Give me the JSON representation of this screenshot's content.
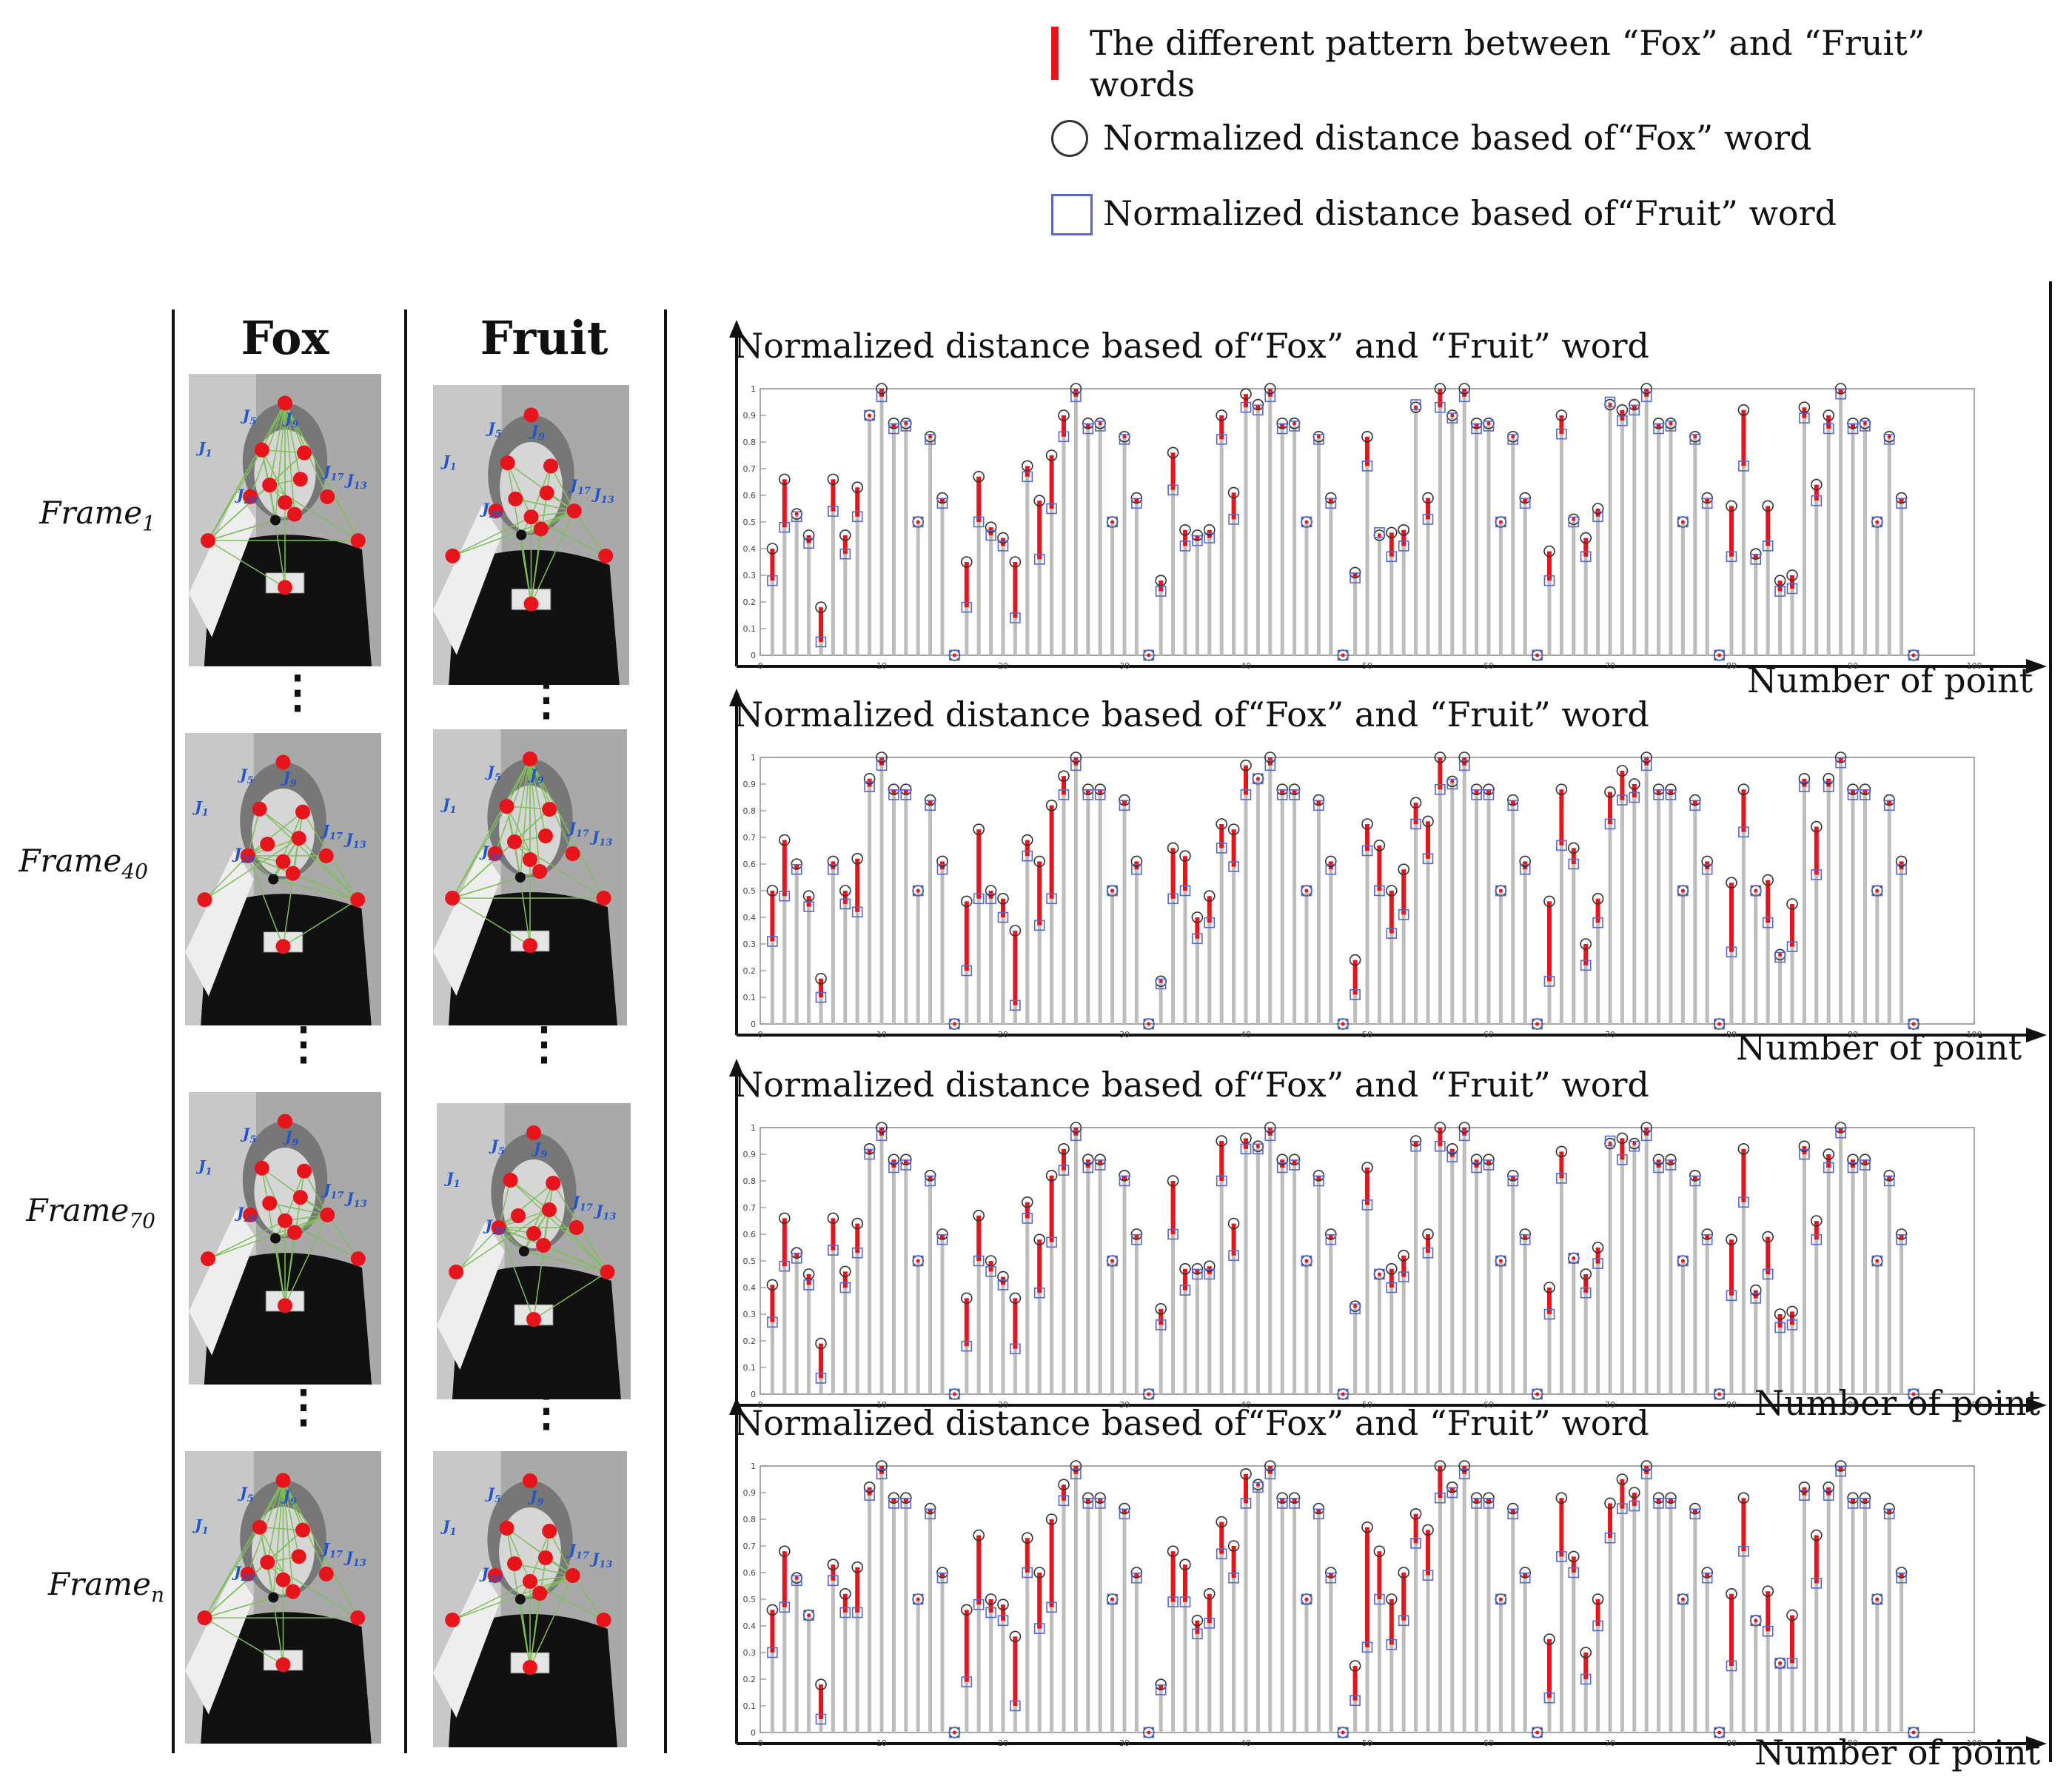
{
  "legend": {
    "diff_text": "The different pattern between “Fox” and “Fruit” words",
    "fox_text": "Normalized distance based of“Fox” word",
    "fruit_text": "Normalized distance based of“Fruit” word"
  },
  "columns": {
    "fox": "Fox",
    "fruit": "Fruit"
  },
  "frames": [
    {
      "base": "Frame",
      "sub": "1"
    },
    {
      "base": "Frame",
      "sub": "40"
    },
    {
      "base": "Frame",
      "sub": "70"
    },
    {
      "base": "Frame",
      "sub": "n"
    }
  ],
  "joint_labels": {
    "j1": "J",
    "s1": "1",
    "s5": "5",
    "s9": "9",
    "s13": "13",
    "s17": "17",
    "s20": "20"
  },
  "colors": {
    "diff": "#e8141b",
    "stem": "#bdbdbd",
    "fox_marker": "#333333",
    "fruit_marker": "#5566cc",
    "skeleton": "#7fbf5a",
    "joint": "#e8141b"
  },
  "chart_data": [
    {
      "type": "stem",
      "title": "Normalized distance based of“Fox” and “Fruit” word",
      "xlabel": "Number of point",
      "xlim": [
        0,
        100
      ],
      "ylim": [
        0,
        1
      ],
      "xticks": [
        0,
        10,
        20,
        30,
        40,
        50,
        60,
        70,
        80,
        90,
        100
      ],
      "yticks": [
        0,
        0.1,
        0.2,
        0.3,
        0.4,
        0.5,
        0.6,
        0.7,
        0.8,
        0.9,
        1
      ],
      "series": [
        {
          "name": "Fox",
          "values": [
            0.4,
            0.66,
            0.53,
            0.45,
            0.18,
            0.66,
            0.45,
            0.63,
            0.9,
            1,
            0.87,
            0.87,
            0.5,
            0.82,
            0.59,
            0,
            0.35,
            0.67,
            0.48,
            0.44,
            0.35,
            0.71,
            0.58,
            0.75,
            0.9,
            1,
            0.87,
            0.87,
            0.5,
            0.82,
            0.59,
            0,
            0.28,
            0.76,
            0.47,
            0.45,
            0.47,
            0.9,
            0.61,
            0.98,
            0.94,
            1,
            0.87,
            0.87,
            0.5,
            0.82,
            0.59,
            0,
            0.31,
            0.82,
            0.45,
            0.46,
            0.47,
            0.93,
            0.59,
            1,
            0.9,
            1,
            0.87,
            0.87,
            0.5,
            0.82,
            0.59,
            0,
            0.39,
            0.9,
            0.51,
            0.44,
            0.55,
            0.94,
            0.92,
            0.94,
            1,
            0.87,
            0.87,
            0.5,
            0.82,
            0.59,
            0,
            0.56,
            0.92,
            0.38,
            0.56,
            0.28,
            0.3,
            0.93,
            0.64,
            0.9,
            1,
            0.87,
            0.87,
            0.5,
            0.82,
            0.59,
            0
          ]
        },
        {
          "name": "Fruit",
          "values": [
            0.28,
            0.48,
            0.52,
            0.42,
            0.05,
            0.54,
            0.38,
            0.52,
            0.9,
            0.97,
            0.85,
            0.86,
            0.5,
            0.81,
            0.57,
            0,
            0.18,
            0.5,
            0.45,
            0.41,
            0.14,
            0.67,
            0.36,
            0.55,
            0.82,
            0.97,
            0.85,
            0.86,
            0.5,
            0.81,
            0.57,
            0,
            0.24,
            0.62,
            0.41,
            0.43,
            0.44,
            0.81,
            0.51,
            0.93,
            0.92,
            0.97,
            0.85,
            0.86,
            0.5,
            0.81,
            0.57,
            0,
            0.29,
            0.71,
            0.46,
            0.37,
            0.41,
            0.94,
            0.51,
            0.93,
            0.89,
            0.97,
            0.85,
            0.86,
            0.5,
            0.81,
            0.57,
            0,
            0.28,
            0.83,
            0.5,
            0.37,
            0.52,
            0.95,
            0.88,
            0.92,
            0.97,
            0.85,
            0.86,
            0.5,
            0.81,
            0.57,
            0,
            0.37,
            0.71,
            0.36,
            0.41,
            0.24,
            0.25,
            0.89,
            0.58,
            0.85,
            0.98,
            0.85,
            0.86,
            0.5,
            0.81,
            0.57,
            0
          ]
        }
      ]
    },
    {
      "type": "stem",
      "title": "Normalized distance based of“Fox” and “Fruit” word",
      "xlabel": "Number of point",
      "xlim": [
        0,
        100
      ],
      "ylim": [
        0,
        1
      ],
      "xticks": [
        0,
        10,
        20,
        30,
        40,
        50,
        60,
        70,
        80,
        90,
        100
      ],
      "yticks": [
        0,
        0.1,
        0.2,
        0.3,
        0.4,
        0.5,
        0.6,
        0.7,
        0.8,
        0.9,
        1
      ],
      "series": [
        {
          "name": "Fox",
          "values": [
            0.5,
            0.69,
            0.6,
            0.48,
            0.17,
            0.61,
            0.5,
            0.62,
            0.92,
            1,
            0.88,
            0.88,
            0.5,
            0.84,
            0.61,
            0,
            0.46,
            0.73,
            0.5,
            0.47,
            0.35,
            0.69,
            0.61,
            0.82,
            0.93,
            1,
            0.88,
            0.88,
            0.5,
            0.84,
            0.61,
            0,
            0.16,
            0.66,
            0.63,
            0.4,
            0.48,
            0.75,
            0.73,
            0.97,
            0.92,
            1,
            0.88,
            0.88,
            0.5,
            0.84,
            0.61,
            0,
            0.24,
            0.75,
            0.67,
            0.5,
            0.58,
            0.83,
            0.76,
            1,
            0.91,
            1,
            0.88,
            0.88,
            0.5,
            0.84,
            0.61,
            0,
            0.46,
            0.88,
            0.66,
            0.3,
            0.47,
            0.87,
            0.95,
            0.9,
            1,
            0.88,
            0.88,
            0.5,
            0.84,
            0.61,
            0,
            0.53,
            0.88,
            0.5,
            0.54,
            0.26,
            0.45,
            0.92,
            0.74,
            0.92,
            1,
            0.88,
            0.88,
            0.5,
            0.84,
            0.61,
            0
          ]
        },
        {
          "name": "Fruit",
          "values": [
            0.31,
            0.48,
            0.58,
            0.44,
            0.1,
            0.58,
            0.45,
            0.42,
            0.89,
            0.97,
            0.86,
            0.86,
            0.5,
            0.82,
            0.58,
            0,
            0.2,
            0.47,
            0.47,
            0.4,
            0.07,
            0.63,
            0.37,
            0.47,
            0.86,
            0.97,
            0.86,
            0.86,
            0.5,
            0.82,
            0.58,
            0,
            0.15,
            0.47,
            0.5,
            0.32,
            0.38,
            0.66,
            0.59,
            0.86,
            0.92,
            0.97,
            0.86,
            0.86,
            0.5,
            0.82,
            0.58,
            0,
            0.11,
            0.65,
            0.5,
            0.34,
            0.41,
            0.75,
            0.62,
            0.88,
            0.9,
            0.97,
            0.86,
            0.86,
            0.5,
            0.82,
            0.58,
            0,
            0.16,
            0.67,
            0.6,
            0.22,
            0.38,
            0.75,
            0.84,
            0.85,
            0.97,
            0.86,
            0.86,
            0.5,
            0.82,
            0.58,
            0,
            0.27,
            0.72,
            0.5,
            0.38,
            0.25,
            0.29,
            0.89,
            0.56,
            0.89,
            0.98,
            0.86,
            0.86,
            0.5,
            0.82,
            0.58,
            0
          ]
        }
      ]
    },
    {
      "type": "stem",
      "title": "Normalized distance based of“Fox” and “Fruit” word",
      "xlabel": "Number of point",
      "xlim": [
        0,
        100
      ],
      "ylim": [
        0,
        1
      ],
      "xticks": [
        0,
        10,
        20,
        30,
        40,
        50,
        60,
        70,
        80,
        90,
        100
      ],
      "yticks": [
        0,
        0.1,
        0.2,
        0.3,
        0.4,
        0.5,
        0.6,
        0.7,
        0.8,
        0.9,
        1
      ],
      "series": [
        {
          "name": "Fox",
          "values": [
            0.41,
            0.66,
            0.53,
            0.45,
            0.19,
            0.66,
            0.46,
            0.64,
            0.92,
            1,
            0.88,
            0.88,
            0.5,
            0.82,
            0.6,
            0,
            0.36,
            0.67,
            0.5,
            0.44,
            0.36,
            0.72,
            0.58,
            0.82,
            0.92,
            1,
            0.88,
            0.88,
            0.5,
            0.82,
            0.6,
            0,
            0.32,
            0.8,
            0.47,
            0.47,
            0.48,
            0.95,
            0.64,
            0.96,
            0.93,
            1,
            0.88,
            0.88,
            0.5,
            0.82,
            0.6,
            0,
            0.33,
            0.85,
            0.45,
            0.47,
            0.52,
            0.95,
            0.6,
            1,
            0.92,
            1,
            0.88,
            0.88,
            0.5,
            0.82,
            0.6,
            0,
            0.4,
            0.91,
            0.51,
            0.45,
            0.55,
            0.94,
            0.96,
            0.94,
            1,
            0.88,
            0.88,
            0.5,
            0.82,
            0.6,
            0,
            0.58,
            0.92,
            0.39,
            0.59,
            0.3,
            0.31,
            0.93,
            0.65,
            0.9,
            1,
            0.88,
            0.88,
            0.5,
            0.82,
            0.6,
            0
          ]
        },
        {
          "name": "Fruit",
          "values": [
            0.27,
            0.48,
            0.51,
            0.41,
            0.06,
            0.54,
            0.4,
            0.53,
            0.9,
            0.97,
            0.85,
            0.86,
            0.5,
            0.8,
            0.58,
            0,
            0.18,
            0.5,
            0.46,
            0.41,
            0.17,
            0.66,
            0.38,
            0.57,
            0.84,
            0.97,
            0.85,
            0.86,
            0.5,
            0.8,
            0.58,
            0,
            0.26,
            0.6,
            0.39,
            0.45,
            0.45,
            0.8,
            0.52,
            0.92,
            0.92,
            0.97,
            0.85,
            0.86,
            0.5,
            0.8,
            0.58,
            0,
            0.32,
            0.71,
            0.45,
            0.4,
            0.44,
            0.93,
            0.53,
            0.93,
            0.89,
            0.97,
            0.85,
            0.86,
            0.5,
            0.8,
            0.58,
            0,
            0.3,
            0.81,
            0.51,
            0.38,
            0.49,
            0.95,
            0.88,
            0.93,
            0.97,
            0.85,
            0.86,
            0.5,
            0.8,
            0.58,
            0,
            0.37,
            0.72,
            0.36,
            0.45,
            0.25,
            0.26,
            0.9,
            0.58,
            0.85,
            0.98,
            0.85,
            0.86,
            0.5,
            0.8,
            0.58,
            0
          ]
        }
      ]
    },
    {
      "type": "stem",
      "title": "Normalized distance based of“Fox” and “Fruit” word",
      "xlabel": "Number of point",
      "xlim": [
        0,
        100
      ],
      "ylim": [
        0,
        1
      ],
      "xticks": [
        0,
        10,
        20,
        30,
        40,
        50,
        60,
        70,
        80,
        90,
        100
      ],
      "yticks": [
        0,
        0.1,
        0.2,
        0.3,
        0.4,
        0.5,
        0.6,
        0.7,
        0.8,
        0.9,
        1
      ],
      "series": [
        {
          "name": "Fox",
          "values": [
            0.46,
            0.68,
            0.58,
            0.44,
            0.18,
            0.63,
            0.52,
            0.62,
            0.92,
            1,
            0.88,
            0.88,
            0.5,
            0.84,
            0.6,
            0,
            0.46,
            0.74,
            0.5,
            0.48,
            0.36,
            0.73,
            0.6,
            0.8,
            0.93,
            1,
            0.88,
            0.88,
            0.5,
            0.84,
            0.6,
            0,
            0.18,
            0.68,
            0.63,
            0.42,
            0.52,
            0.79,
            0.7,
            0.97,
            0.93,
            1,
            0.88,
            0.88,
            0.5,
            0.84,
            0.6,
            0,
            0.25,
            0.77,
            0.68,
            0.5,
            0.6,
            0.82,
            0.76,
            1,
            0.92,
            1,
            0.88,
            0.88,
            0.5,
            0.84,
            0.6,
            0,
            0.35,
            0.88,
            0.66,
            0.3,
            0.5,
            0.86,
            0.95,
            0.9,
            1,
            0.88,
            0.88,
            0.5,
            0.84,
            0.6,
            0,
            0.52,
            0.88,
            0.42,
            0.53,
            0.26,
            0.44,
            0.92,
            0.74,
            0.92,
            1,
            0.88,
            0.88,
            0.5,
            0.84,
            0.6,
            0
          ]
        },
        {
          "name": "Fruit",
          "values": [
            0.3,
            0.47,
            0.57,
            0.44,
            0.05,
            0.57,
            0.45,
            0.45,
            0.89,
            0.97,
            0.86,
            0.86,
            0.5,
            0.82,
            0.58,
            0,
            0.19,
            0.48,
            0.45,
            0.42,
            0.1,
            0.6,
            0.39,
            0.47,
            0.87,
            0.97,
            0.86,
            0.86,
            0.5,
            0.82,
            0.58,
            0,
            0.16,
            0.49,
            0.49,
            0.37,
            0.41,
            0.67,
            0.58,
            0.86,
            0.92,
            0.97,
            0.86,
            0.86,
            0.5,
            0.82,
            0.58,
            0,
            0.12,
            0.32,
            0.5,
            0.33,
            0.42,
            0.71,
            0.59,
            0.88,
            0.9,
            0.97,
            0.86,
            0.86,
            0.5,
            0.82,
            0.58,
            0,
            0.13,
            0.66,
            0.6,
            0.2,
            0.4,
            0.73,
            0.84,
            0.85,
            0.97,
            0.86,
            0.86,
            0.5,
            0.82,
            0.58,
            0,
            0.25,
            0.68,
            0.42,
            0.38,
            0.26,
            0.26,
            0.89,
            0.56,
            0.89,
            0.98,
            0.86,
            0.86,
            0.5,
            0.82,
            0.58,
            0
          ]
        }
      ]
    }
  ]
}
